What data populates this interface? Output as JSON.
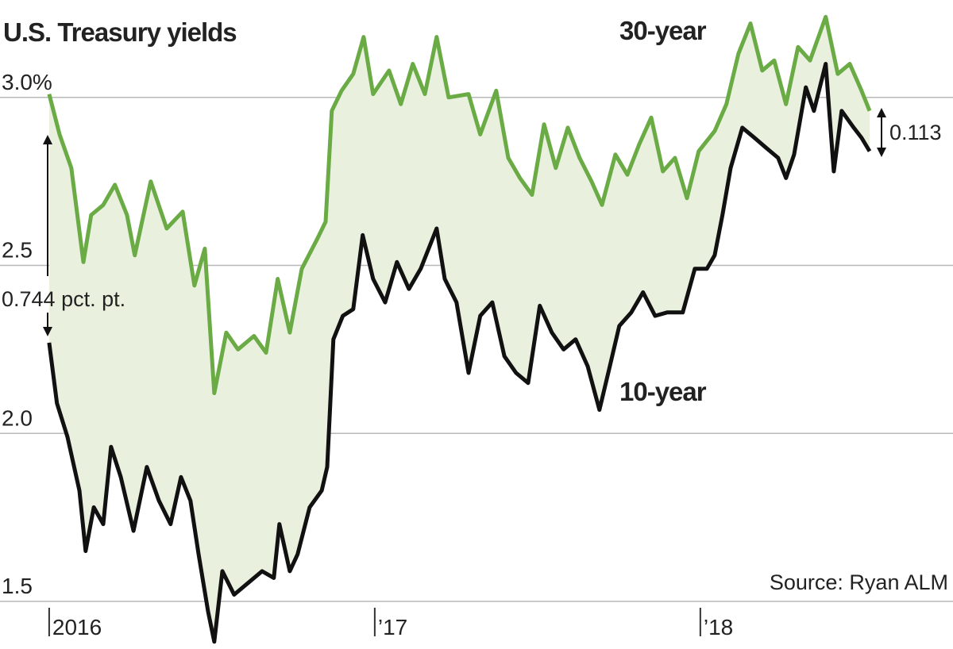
{
  "chart_data": {
    "type": "line",
    "title": "U.S. Treasury yields",
    "annotations": [
      "0.744 pct. pt.",
      "0.113"
    ],
    "source": "Source: Ryan ALM",
    "xlim": [
      2015.849,
      2018.776
    ],
    "xticks": [
      {
        "value": 2016,
        "label": "2016"
      },
      {
        "value": 2017,
        "label": "’17"
      },
      {
        "value": 2018,
        "label": "’18"
      }
    ],
    "ylim": [
      1.5,
      3.29
    ],
    "yticks": [
      {
        "value": 3,
        "label": "3.0%"
      },
      2.5,
      {
        "value": 2,
        "label": "2.0"
      },
      1.5
    ],
    "grid": true,
    "fill_between": "#e9f1de",
    "series": [
      {
        "name": "30-year",
        "color": "#6aab45",
        "x": [
          2016,
          2016.032,
          2016.068,
          2016.105,
          2016.129,
          2016.166,
          2016.202,
          2016.239,
          2016.263,
          2016.312,
          2016.361,
          2016.41,
          2016.446,
          2016.478,
          2016.507,
          2016.544,
          2016.58,
          2016.629,
          2016.666,
          2016.702,
          2016.739,
          2016.776,
          2016.824,
          2016.849,
          2016.868,
          2016.898,
          2016.934,
          2016.966,
          2016.995,
          2017.044,
          2017.08,
          2017.117,
          2017.154,
          2017.19,
          2017.227,
          2017.288,
          2017.324,
          2017.373,
          2017.41,
          2017.446,
          2017.483,
          2017.52,
          2017.556,
          2017.593,
          2017.629,
          2017.666,
          2017.698,
          2017.739,
          2017.776,
          2017.812,
          2017.849,
          2017.885,
          2017.922,
          2017.959,
          2017.995,
          2018.044,
          2018.08,
          2018.117,
          2018.154,
          2018.19,
          2018.227,
          2018.263,
          2018.3,
          2018.337,
          2018.385,
          2018.422,
          2018.459,
          2018.495,
          2018.52
        ],
        "values": [
          3.01,
          2.89,
          2.79,
          2.51,
          2.65,
          2.68,
          2.74,
          2.65,
          2.53,
          2.75,
          2.61,
          2.66,
          2.44,
          2.55,
          2.12,
          2.3,
          2.25,
          2.29,
          2.24,
          2.46,
          2.3,
          2.49,
          2.58,
          2.63,
          2.96,
          3.02,
          3.07,
          3.18,
          3.01,
          3.08,
          2.98,
          3.1,
          3.01,
          3.18,
          3.0,
          3.01,
          2.89,
          3.02,
          2.82,
          2.76,
          2.71,
          2.92,
          2.79,
          2.91,
          2.82,
          2.75,
          2.68,
          2.83,
          2.77,
          2.86,
          2.94,
          2.78,
          2.82,
          2.7,
          2.84,
          2.9,
          2.98,
          3.13,
          3.22,
          3.08,
          3.11,
          2.98,
          3.15,
          3.11,
          3.24,
          3.07,
          3.1,
          3.02,
          2.96
        ]
      },
      {
        "name": "10-year",
        "color": "#111111",
        "x": [
          2016,
          2016.024,
          2016.056,
          2016.093,
          2016.112,
          2016.137,
          2016.166,
          2016.19,
          2016.22,
          2016.259,
          2016.3,
          2016.337,
          2016.373,
          2016.405,
          2016.434,
          2016.459,
          2016.488,
          2016.507,
          2016.532,
          2016.568,
          2016.605,
          2016.654,
          2016.69,
          2016.707,
          2016.739,
          2016.763,
          2016.8,
          2016.837,
          2016.854,
          2016.873,
          2016.902,
          2016.934,
          2016.963,
          2016.995,
          2017.032,
          2017.068,
          2017.105,
          2017.141,
          2017.19,
          2017.215,
          2017.251,
          2017.288,
          2017.324,
          2017.361,
          2017.398,
          2017.434,
          2017.471,
          2017.507,
          2017.544,
          2017.58,
          2017.617,
          2017.654,
          2017.69,
          2017.722,
          2017.751,
          2017.788,
          2017.824,
          2017.861,
          2017.898,
          2017.946,
          2017.983,
          2018.02,
          2018.044,
          2018.068,
          2018.093,
          2018.129,
          2018.166,
          2018.202,
          2018.239,
          2018.263,
          2018.288,
          2018.324,
          2018.349,
          2018.385,
          2018.41,
          2018.434,
          2018.471,
          2018.495,
          2018.52
        ],
        "values": [
          2.27,
          2.09,
          1.99,
          1.83,
          1.65,
          1.78,
          1.73,
          1.96,
          1.87,
          1.71,
          1.9,
          1.8,
          1.73,
          1.87,
          1.8,
          1.64,
          1.47,
          1.38,
          1.59,
          1.52,
          1.55,
          1.59,
          1.57,
          1.73,
          1.59,
          1.64,
          1.78,
          1.83,
          1.9,
          2.28,
          2.35,
          2.37,
          2.59,
          2.46,
          2.39,
          2.51,
          2.43,
          2.49,
          2.61,
          2.46,
          2.39,
          2.18,
          2.35,
          2.39,
          2.23,
          2.18,
          2.15,
          2.38,
          2.3,
          2.25,
          2.28,
          2.2,
          2.07,
          2.2,
          2.32,
          2.36,
          2.42,
          2.35,
          2.36,
          2.36,
          2.49,
          2.49,
          2.53,
          2.65,
          2.79,
          2.91,
          2.88,
          2.85,
          2.82,
          2.76,
          2.83,
          3.03,
          2.96,
          3.1,
          2.78,
          2.96,
          2.91,
          2.88,
          2.84
        ]
      }
    ]
  }
}
